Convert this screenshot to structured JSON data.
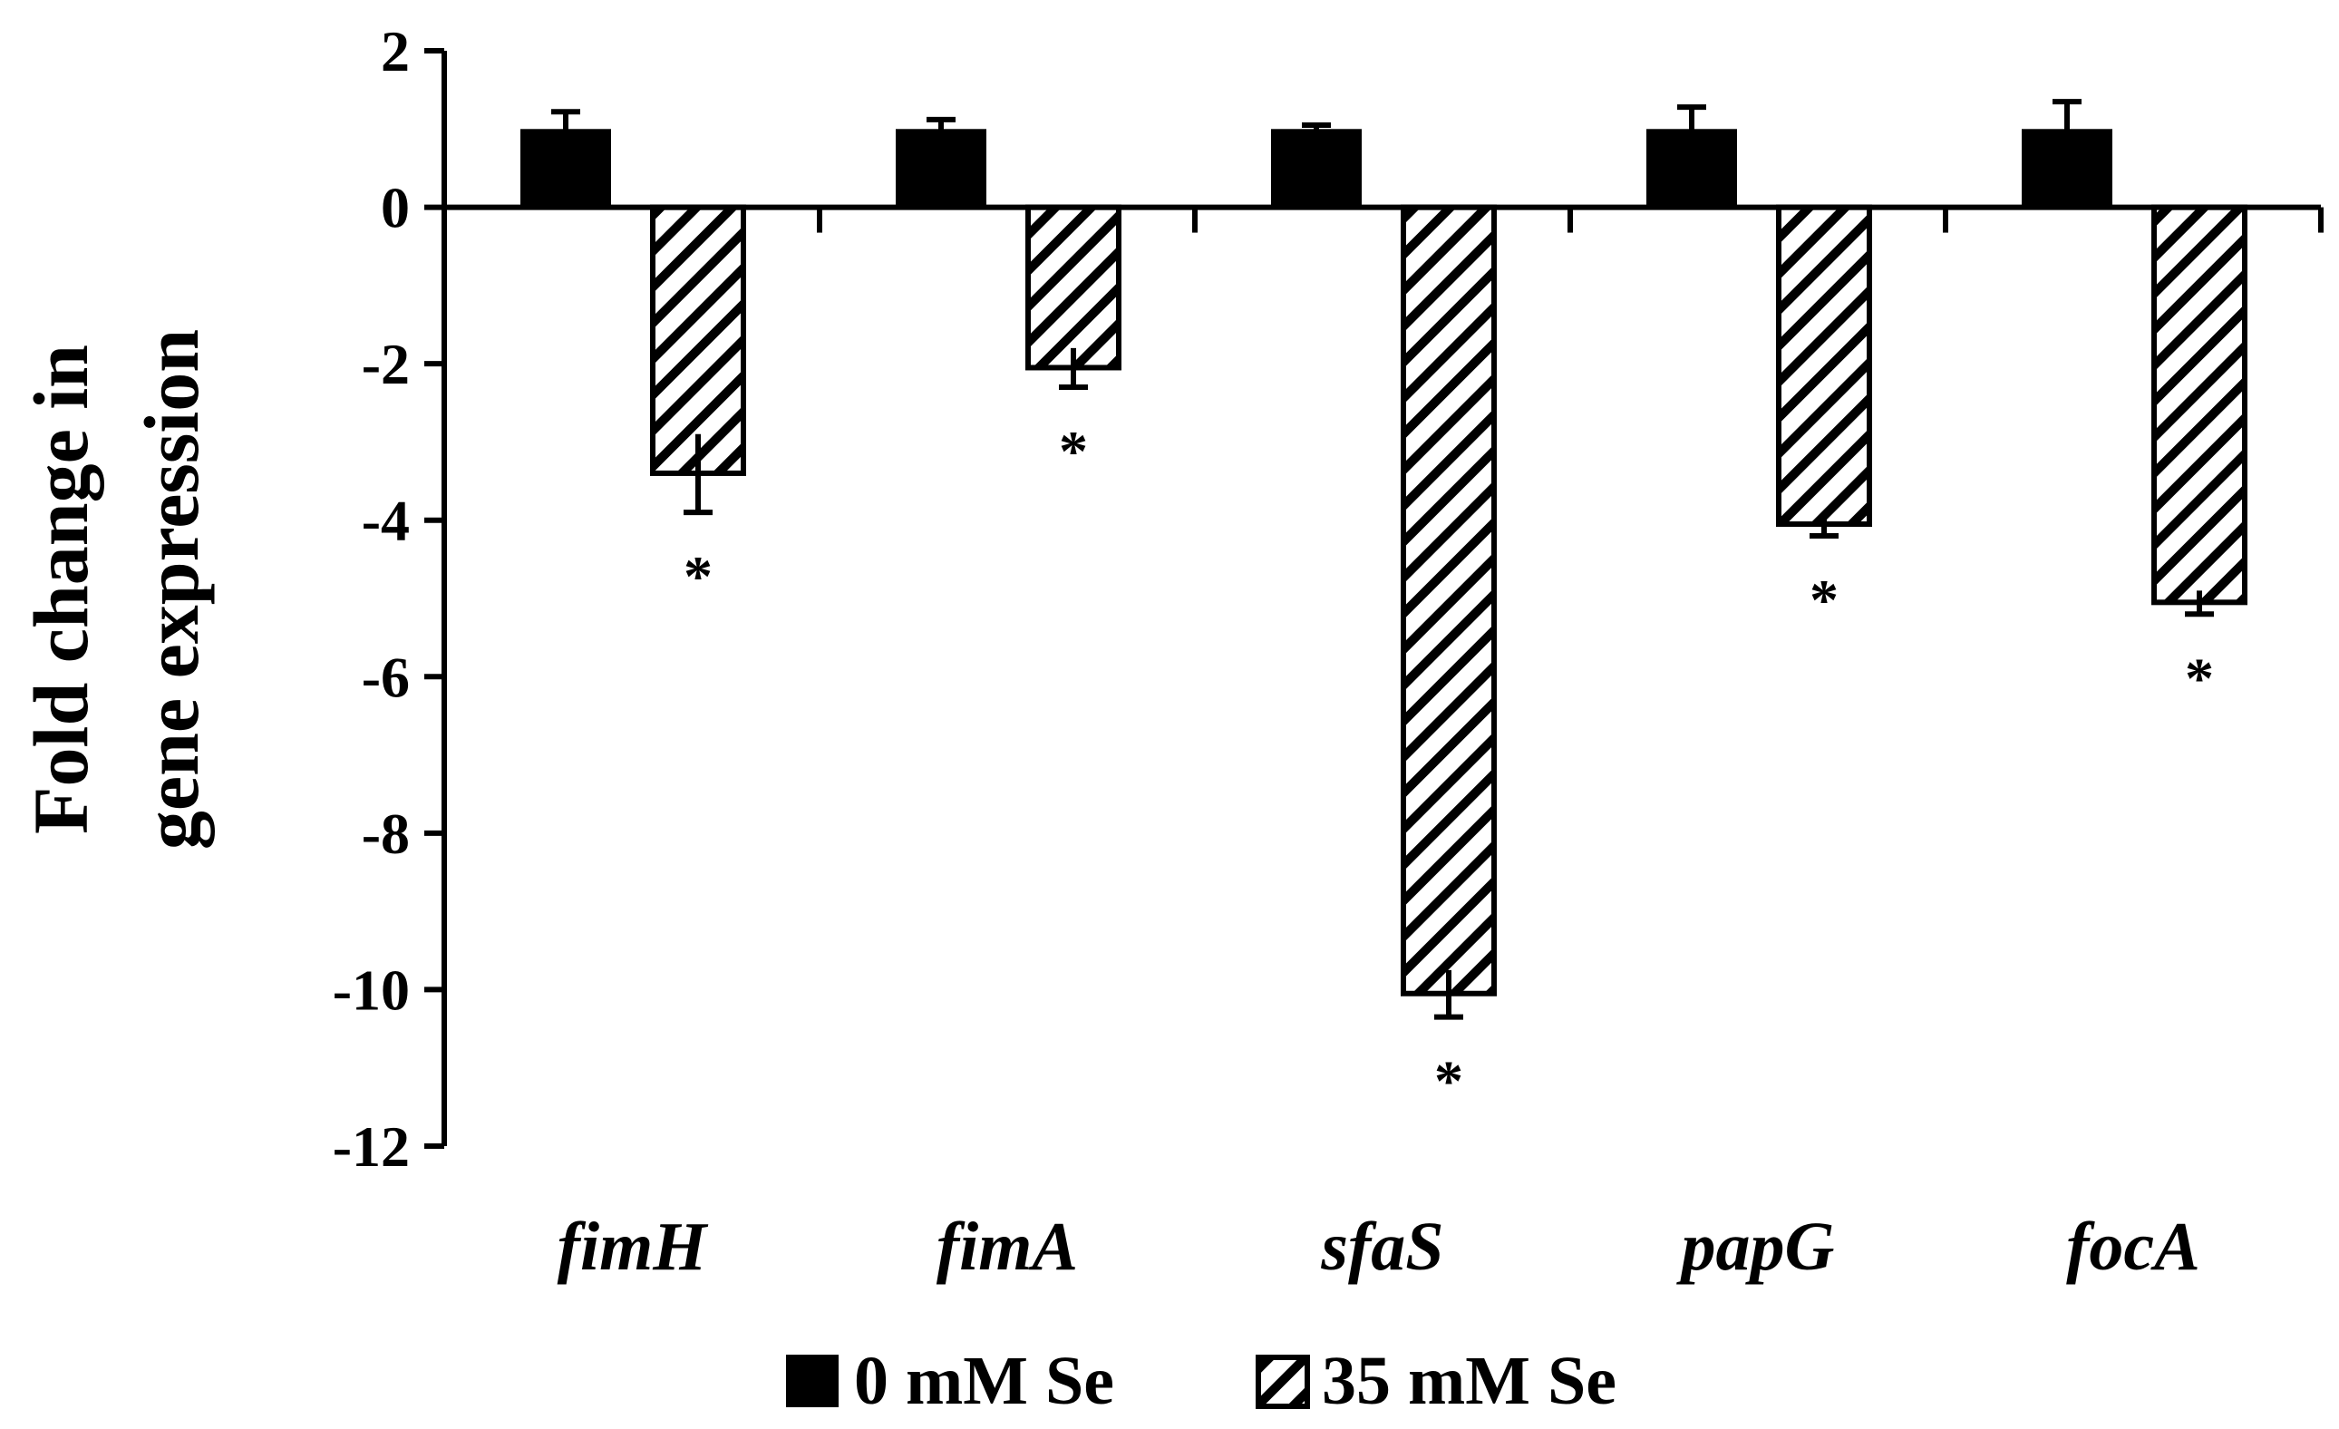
{
  "chart_data": {
    "type": "bar",
    "title": "",
    "xlabel": "",
    "ylabel_lines": [
      "Fold change in",
      "gene expression"
    ],
    "categories": [
      "fimH",
      "fimA",
      "sfaS",
      "papG",
      "focA"
    ],
    "series": [
      {
        "name": "0 mM Se",
        "fill": "solid",
        "color": "#000000",
        "values": [
          1.0,
          1.0,
          1.0,
          1.0,
          1.0
        ],
        "errors": [
          0.22,
          0.12,
          0.05,
          0.28,
          0.35
        ]
      },
      {
        "name": "35 mM Se",
        "fill": "diagonal-hatch",
        "color": "#000000",
        "values": [
          -3.4,
          -2.05,
          -10.05,
          -4.05,
          -5.05
        ],
        "errors": [
          0.5,
          0.25,
          0.3,
          0.15,
          0.15
        ]
      }
    ],
    "significance_marks": [
      "*",
      "*",
      "*",
      "*",
      "*"
    ],
    "ylim": [
      -12,
      2
    ],
    "yticks": [
      2,
      0,
      -2,
      -4,
      -6,
      -8,
      -10,
      -12
    ],
    "ytick_labels": [
      "2",
      "0",
      "-2",
      "-4",
      "-6",
      "-8",
      "-10",
      "-12"
    ],
    "grid": false,
    "legend_position": "bottom"
  }
}
